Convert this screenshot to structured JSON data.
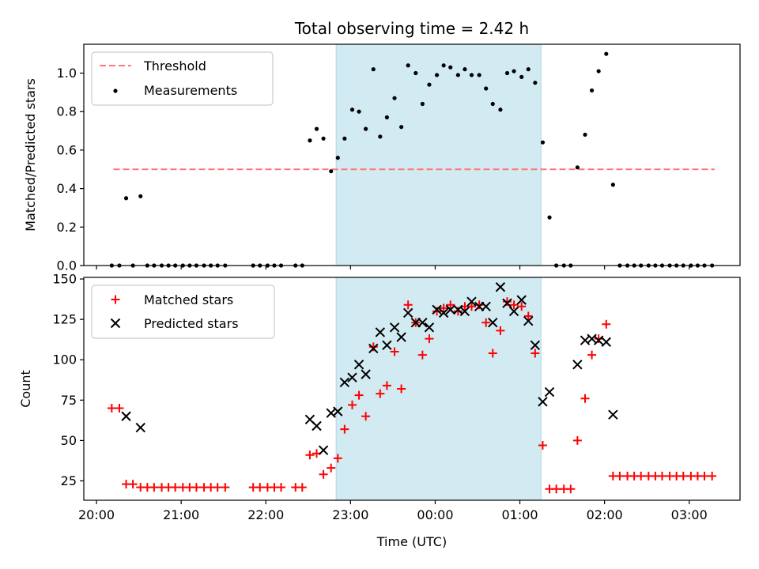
{
  "chart_data": [
    {
      "type": "scatter",
      "title": "Total observing time = 2.42 h",
      "ylabel": "Matched/Predicted stars",
      "xlabel": "",
      "ylim": [
        0,
        1.15
      ],
      "yticks": [
        0.0,
        0.2,
        0.4,
        0.6,
        0.8,
        1.0
      ],
      "ytick_labels": [
        "0.0",
        "0.2",
        "0.4",
        "0.6",
        "0.8",
        "1.0"
      ],
      "observing_window_hours": [
        22.83,
        25.25
      ],
      "window_color": "#add8e6",
      "threshold": {
        "name": "Threshold",
        "value": 0.5,
        "x_range": [
          20.2,
          27.3
        ],
        "color": "#ff7777"
      },
      "legend_position": "top-left",
      "series": [
        {
          "name": "Measurements",
          "color": "#000000",
          "x": [
            20.18,
            20.27,
            20.35,
            20.43,
            20.52,
            20.6,
            20.68,
            20.77,
            20.85,
            20.93,
            21.02,
            21.1,
            21.18,
            21.27,
            21.35,
            21.43,
            21.52,
            21.85,
            21.93,
            22.02,
            22.1,
            22.18,
            22.35,
            22.43,
            22.52,
            22.6,
            22.68,
            22.77,
            22.85,
            22.93,
            23.02,
            23.1,
            23.18,
            23.27,
            23.35,
            23.43,
            23.52,
            23.6,
            23.68,
            23.77,
            23.85,
            23.93,
            24.02,
            24.1,
            24.18,
            24.27,
            24.35,
            24.43,
            24.52,
            24.6,
            24.68,
            24.77,
            24.85,
            24.93,
            25.02,
            25.1,
            25.18,
            25.27,
            25.35,
            25.43,
            25.52,
            25.6,
            25.68,
            25.77,
            25.85,
            25.93,
            26.02,
            26.1,
            26.18,
            26.27,
            26.35,
            26.43,
            26.52,
            26.6,
            26.68,
            26.77,
            26.85,
            26.93,
            27.02,
            27.1,
            27.18,
            27.27
          ],
          "y": [
            0.0,
            0.0,
            0.35,
            0.0,
            0.36,
            0.0,
            0.0,
            0.0,
            0.0,
            0.0,
            0.0,
            0.0,
            0.0,
            0.0,
            0.0,
            0.0,
            0.0,
            0.0,
            0.0,
            0.0,
            0.0,
            0.0,
            0.0,
            0.0,
            0.65,
            0.71,
            0.66,
            0.49,
            0.56,
            0.66,
            0.81,
            0.8,
            0.71,
            1.02,
            0.67,
            0.77,
            0.87,
            0.72,
            1.04,
            1.0,
            0.84,
            0.94,
            0.99,
            1.04,
            1.03,
            0.99,
            1.02,
            0.99,
            0.99,
            0.92,
            0.84,
            0.81,
            1.0,
            1.01,
            0.98,
            1.02,
            0.95,
            0.64,
            0.25,
            0.0,
            0.0,
            0.0,
            0.51,
            0.68,
            0.91,
            1.01,
            1.1,
            0.42,
            0.0,
            0.0,
            0.0,
            0.0,
            0.0,
            0.0,
            0.0,
            0.0,
            0.0,
            0.0,
            0.0,
            0.0,
            0.0,
            0.0
          ]
        }
      ]
    },
    {
      "type": "scatter",
      "title": "",
      "xlabel": "Time (UTC)",
      "ylabel": "Count",
      "ylim": [
        13,
        151
      ],
      "yticks": [
        25,
        50,
        75,
        100,
        125,
        150
      ],
      "ytick_labels": [
        "25",
        "50",
        "75",
        "100",
        "125",
        "150"
      ],
      "xlim_hours": [
        19.85,
        27.6
      ],
      "xticks_hours": [
        20,
        21,
        22,
        23,
        24,
        25,
        26,
        27
      ],
      "xtick_labels": [
        "20:00",
        "21:00",
        "22:00",
        "23:00",
        "00:00",
        "01:00",
        "02:00",
        "03:00"
      ],
      "observing_window_hours": [
        22.83,
        25.25
      ],
      "window_color": "#add8e6",
      "legend_position": "top-left",
      "series": [
        {
          "name": "Matched stars",
          "marker": "plus",
          "color": "#ff0000",
          "x": [
            20.18,
            20.27,
            20.35,
            20.43,
            20.52,
            20.6,
            20.68,
            20.77,
            20.85,
            20.93,
            21.02,
            21.1,
            21.18,
            21.27,
            21.35,
            21.43,
            21.52,
            21.85,
            21.93,
            22.02,
            22.1,
            22.18,
            22.35,
            22.43,
            22.52,
            22.6,
            22.68,
            22.77,
            22.85,
            22.93,
            23.02,
            23.1,
            23.18,
            23.27,
            23.35,
            23.43,
            23.52,
            23.6,
            23.68,
            23.77,
            23.85,
            23.93,
            24.02,
            24.1,
            24.18,
            24.27,
            24.35,
            24.43,
            24.52,
            24.6,
            24.68,
            24.77,
            24.85,
            24.93,
            25.02,
            25.1,
            25.18,
            25.27,
            25.35,
            25.43,
            25.52,
            25.6,
            25.68,
            25.77,
            25.85,
            25.93,
            26.02,
            26.1,
            26.18,
            26.27,
            26.35,
            26.43,
            26.52,
            26.6,
            26.68,
            26.77,
            26.85,
            26.93,
            27.02,
            27.1,
            27.18,
            27.27
          ],
          "y": [
            70,
            70,
            23,
            23,
            21,
            21,
            21,
            21,
            21,
            21,
            21,
            21,
            21,
            21,
            21,
            21,
            21,
            21,
            21,
            21,
            21,
            21,
            21,
            21,
            41,
            42,
            29,
            33,
            39,
            57,
            72,
            78,
            65,
            108,
            79,
            84,
            105,
            82,
            134,
            123,
            103,
            113,
            130,
            132,
            134,
            130,
            133,
            133,
            134,
            123,
            104,
            118,
            136,
            134,
            133,
            127,
            104,
            47,
            20,
            20,
            20,
            20,
            50,
            76,
            103,
            113,
            122,
            28,
            28,
            28,
            28,
            28,
            28,
            28,
            28,
            28,
            28,
            28,
            28,
            28,
            28,
            28
          ]
        },
        {
          "name": "Predicted stars",
          "marker": "x",
          "color": "#000000",
          "x": [
            20.35,
            20.52,
            22.52,
            22.6,
            22.68,
            22.77,
            22.85,
            22.93,
            23.02,
            23.1,
            23.18,
            23.27,
            23.35,
            23.43,
            23.52,
            23.6,
            23.68,
            23.77,
            23.85,
            23.93,
            24.02,
            24.1,
            24.18,
            24.27,
            24.35,
            24.43,
            24.52,
            24.6,
            24.68,
            24.77,
            24.85,
            24.93,
            25.02,
            25.1,
            25.18,
            25.27,
            25.35,
            25.68,
            25.77,
            25.85,
            25.93,
            26.02,
            26.1
          ],
          "y": [
            65,
            58,
            63,
            59,
            44,
            67,
            68,
            86,
            89,
            97,
            91,
            107,
            117,
            109,
            120,
            114,
            129,
            123,
            123,
            120,
            131,
            129,
            131,
            131,
            130,
            136,
            133,
            133,
            123,
            145,
            135,
            130,
            137,
            124,
            109,
            74,
            80,
            97,
            112,
            113,
            112,
            111,
            66
          ]
        }
      ]
    }
  ]
}
